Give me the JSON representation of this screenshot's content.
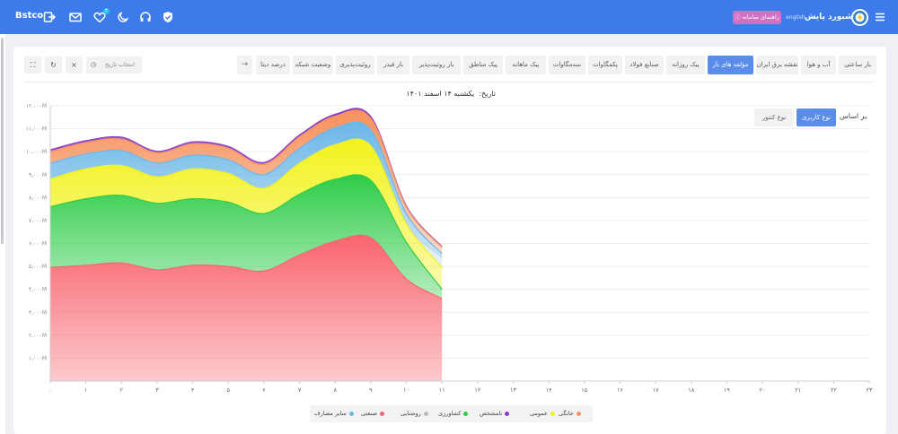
{
  "header": {
    "brand": "Bstco",
    "app_title": "داشبورد پایش",
    "lang_link": "english",
    "guide_label": "راهنمای سامانه",
    "notification_count": "۲"
  },
  "tabs": [
    {
      "label": "بار ساعتی",
      "active": false
    },
    {
      "label": "آب و هوا",
      "active": false
    },
    {
      "label": "نقشه برق ایران",
      "active": false
    },
    {
      "label": "مؤلفه های بار",
      "active": true
    },
    {
      "label": "پیک روزانه",
      "active": false
    },
    {
      "label": "صنایع فولاد",
      "active": false
    },
    {
      "label": "پکمگاوات",
      "active": false
    },
    {
      "label": "سه‌مگاوات",
      "active": false
    },
    {
      "label": "پیک ماهانه",
      "active": false
    },
    {
      "label": "پیک مناطق",
      "active": false
    },
    {
      "label": "بار روئیت‌پذیر",
      "active": false
    },
    {
      "label": "بار فیدر",
      "active": false
    },
    {
      "label": "روئیت‌پذیری",
      "active": false
    },
    {
      "label": "وضعیت شبکه",
      "active": false
    },
    {
      "label": "درصد دیتا",
      "active": false
    }
  ],
  "toolbar": {
    "date_placeholder": "انتخاب تاریخ",
    "next_arrow": "→",
    "filter_icon": "filter-icon",
    "refresh_icon": "refresh-icon",
    "fullscreen_icon": "fullscreen-icon"
  },
  "date_line": {
    "label": "تاریخ:",
    "value": "یکشنبه ۱۴ اسفند ۱۴۰۱"
  },
  "basis": {
    "label": "بر اساس",
    "options": [
      {
        "label": "نوع کاربری",
        "active": true
      },
      {
        "label": "نوع کنتور",
        "active": false
      }
    ]
  },
  "colors": {
    "topbar": "#3d7bea",
    "accent": "#5a8de9",
    "guide_button": "#d071c3"
  },
  "chart_data": {
    "type": "area",
    "stacked": true,
    "x": [
      0,
      1,
      2,
      3,
      4,
      5,
      6,
      7,
      8,
      9,
      10,
      11
    ],
    "x_ticks": [
      "۰",
      "۱",
      "۲",
      "۳",
      "۴",
      "۵",
      "۶",
      "۷",
      "۸",
      "۹",
      "۱۰",
      "۱۱",
      "۱۲",
      "۱۳",
      "۱۴",
      "۱۵",
      "۱۶",
      "۱۷",
      "۱۸",
      "۱۹",
      "۲۰",
      "۲۱",
      "۲۲",
      "۲۳"
    ],
    "xlim": [
      0,
      23
    ],
    "y_ticks": [
      "۰",
      "۱,۰۰۰M",
      "۲,۰۰۰M",
      "۳,۰۰۰M",
      "۴,۰۰۰M",
      "۵,۰۰۰M",
      "۶,۰۰۰M",
      "۷,۰۰۰M",
      "۸,۰۰۰M",
      "۹,۰۰۰M",
      "۱۰,۰۰۰M",
      "۱۱,۰۰۰M",
      "۱۲,۰۰۰M"
    ],
    "ylim": [
      0,
      12000
    ],
    "grid": true,
    "legend_position": "bottom",
    "series": [
      {
        "name": "صنعتی",
        "color": "#f9656f",
        "values": [
          4950,
          5050,
          5150,
          4850,
          5050,
          5000,
          4800,
          5500,
          6100,
          6250,
          4450,
          3600
        ]
      },
      {
        "name": "کشاورزی",
        "color": "#2ecc48",
        "values": [
          2650,
          2900,
          2950,
          2900,
          2900,
          2800,
          2500,
          2650,
          2700,
          2500,
          1600,
          400
        ]
      },
      {
        "name": "عمومی",
        "color": "#f2f21c",
        "values": [
          1200,
          1300,
          1300,
          1150,
          1300,
          1250,
          1100,
          1350,
          1500,
          1500,
          800,
          950
        ]
      },
      {
        "name": "روشنایی",
        "color": "#bcd6ea",
        "values": [
          0,
          0,
          0,
          0,
          0,
          0,
          0,
          0,
          0,
          0,
          0,
          450
        ]
      },
      {
        "name": "سایر مصارف",
        "color": "#6cb7e8",
        "values": [
          700,
          650,
          650,
          600,
          600,
          600,
          600,
          650,
          750,
          700,
          450,
          150
        ]
      },
      {
        "name": "خانگی",
        "color": "#f7915c",
        "values": [
          500,
          500,
          500,
          450,
          500,
          500,
          450,
          500,
          500,
          500,
          300,
          280
        ]
      },
      {
        "name": "نامشخص",
        "color": "#8a3cc9",
        "values": [
          80,
          80,
          80,
          70,
          80,
          80,
          80,
          80,
          80,
          80,
          40,
          30
        ]
      }
    ],
    "legend": [
      {
        "name": "خانگی",
        "color": "#f7915c"
      },
      {
        "name": "عمومی",
        "color": "#f2f21c"
      },
      {
        "name": "نامشخص",
        "color": "#8a3cc9"
      },
      {
        "name": "کشاورزی",
        "color": "#2ecc48"
      },
      {
        "name": "روشنایی",
        "color": "#bcbcbc"
      },
      {
        "name": "صنعتی",
        "color": "#f9656f"
      },
      {
        "name": "سایر مصارف",
        "color": "#6cb7e8"
      }
    ]
  }
}
